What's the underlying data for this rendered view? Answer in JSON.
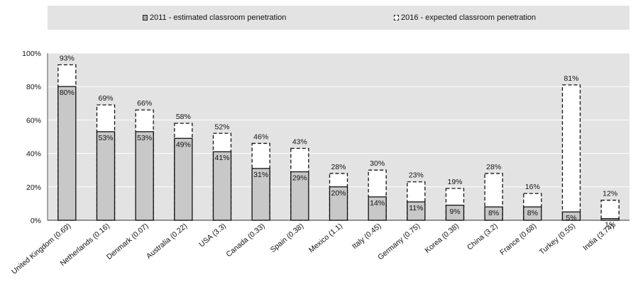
{
  "chart_data": {
    "type": "bar",
    "legend_position": "top",
    "grid": true,
    "ylim": [
      0,
      100
    ],
    "y_ticks": [
      "0%",
      "20%",
      "40%",
      "60%",
      "80%",
      "100%"
    ],
    "categories": [
      "United Kingdom (0.69)",
      "Netherlands (0.16)",
      "Denmark (0.07)",
      "Australia (0.22)",
      "USA (3.3)",
      "Canada (0.33)",
      "Spain (0.38)",
      "Mexico (1.1)",
      "Italy (0.45)",
      "Germany (0.75)",
      "Korea (0.38)",
      "China (3.2)",
      "France (0.68)",
      "Turkey (0.55)",
      "India (3.74)"
    ],
    "series": [
      {
        "name": "2011 - estimated classroom penetration",
        "values": [
          80,
          53,
          53,
          49,
          41,
          31,
          29,
          20,
          14,
          11,
          9,
          8,
          8,
          5,
          1
        ],
        "labels": [
          "80%",
          "53%",
          "53%",
          "49%",
          "41%",
          "31%",
          "29%",
          "20%",
          "14%",
          "11%",
          "9%",
          "8%",
          "8%",
          "5%",
          "1%"
        ],
        "color": "#c8c8c8",
        "style": "solid"
      },
      {
        "name": "2016 - expected classroom penetration",
        "values": [
          93,
          69,
          66,
          58,
          52,
          46,
          43,
          28,
          30,
          23,
          19,
          28,
          16,
          81,
          12
        ],
        "labels": [
          "93%",
          "69%",
          "66%",
          "58%",
          "52%",
          "46%",
          "43%",
          "28%",
          "30%",
          "23%",
          "19%",
          "28%",
          "16%",
          "81%",
          "12%"
        ],
        "color": "#ffffff",
        "style": "dashed"
      }
    ],
    "plot_background": "#e3e3e3",
    "gridline_color": "#ffffff"
  }
}
